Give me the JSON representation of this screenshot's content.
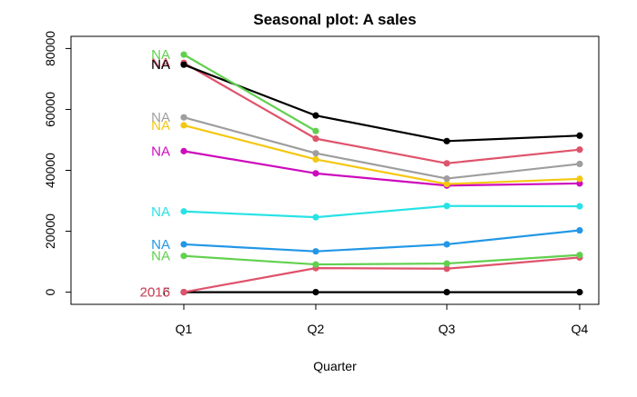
{
  "chart_data": {
    "type": "line",
    "title": "Seasonal plot: A sales",
    "xlabel": "Quarter",
    "ylabel": "",
    "categories": [
      "Q1",
      "Q2",
      "Q3",
      "Q4"
    ],
    "yticks": [
      0,
      20000,
      40000,
      60000,
      80000
    ],
    "ytick_labels": [
      "0",
      "20000",
      "40000",
      "60000",
      "80000"
    ],
    "ylim": [
      -4000,
      84000
    ],
    "series": [
      {
        "label": "2016",
        "color": "#000000",
        "values": [
          0,
          0,
          0,
          0
        ]
      },
      {
        "label": "2015",
        "color": "#DF536B",
        "values": [
          0,
          7900,
          7700,
          11400
        ]
      },
      {
        "label": "NA",
        "color": "#61D04F",
        "values": [
          11900,
          9100,
          9400,
          12200
        ]
      },
      {
        "label": "NA",
        "color": "#2297E6",
        "values": [
          15700,
          13400,
          15700,
          20300
        ]
      },
      {
        "label": "NA",
        "color": "#28E2E5",
        "values": [
          26500,
          24600,
          28300,
          28200
        ]
      },
      {
        "label": "NA",
        "color": "#CD0BBC",
        "values": [
          46300,
          39000,
          35000,
          35700
        ]
      },
      {
        "label": "NA",
        "color": "#F5C710",
        "values": [
          54800,
          43600,
          35500,
          37200
        ]
      },
      {
        "label": "NA",
        "color": "#9E9E9E",
        "values": [
          57400,
          45600,
          37300,
          42100
        ]
      },
      {
        "label": "NA",
        "color": "#DF536B",
        "values": [
          75300,
          50400,
          42300,
          46800
        ]
      },
      {
        "label": "NA",
        "color": "#000000",
        "values": [
          74700,
          58000,
          49600,
          51400
        ]
      },
      {
        "label": "NA",
        "color": "#61D04F",
        "values": [
          78000,
          52900,
          null,
          null
        ]
      }
    ]
  }
}
